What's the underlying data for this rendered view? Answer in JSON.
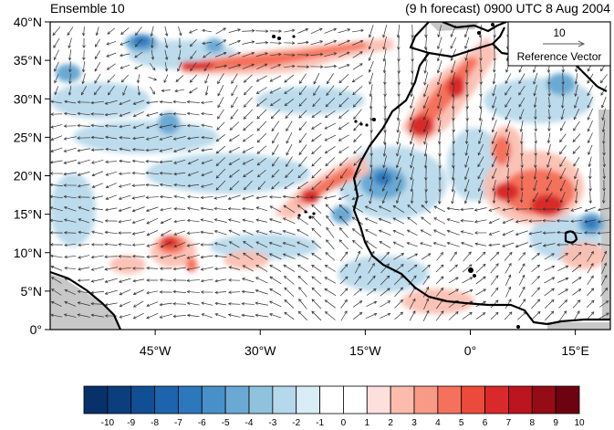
{
  "title_left": "Ensemble 10",
  "title_right": "(9 h forecast) 0900 UTC 8 Aug 2004",
  "reference_vector": {
    "magnitude": "10",
    "label": "Reference Vector"
  },
  "lat_labels": [
    "40°N",
    "35°N",
    "30°N",
    "25°N",
    "20°N",
    "15°N",
    "10°N",
    "5°N",
    "0°"
  ],
  "lon_labels": [
    "45°W",
    "30°W",
    "15°W",
    "0°",
    "15°E"
  ],
  "colorbar": {
    "labels": [
      "-10",
      "-9",
      "-8",
      "-7",
      "-6",
      "-5",
      "-4",
      "-3",
      "-2",
      "-1",
      "0",
      "1",
      "2",
      "3",
      "4",
      "5",
      "6",
      "7",
      "8",
      "9",
      "10"
    ],
    "colors": [
      "#08306b",
      "#0b3e7d",
      "#114f95",
      "#1c64ad",
      "#2d78bd",
      "#4891c8",
      "#6aa9d3",
      "#8fc2dd",
      "#b5d8ea",
      "#d8edf6",
      "#ffffff",
      "#ffffff",
      "#fde0dc",
      "#fbbcae",
      "#f89a85",
      "#f4725c",
      "#ec4a3a",
      "#d9292b",
      "#bb1520",
      "#960c16",
      "#6d0210"
    ]
  },
  "colors": {
    "land_gray": "#c8c8c8",
    "coast": "#000000",
    "arrow": "#333333"
  }
}
